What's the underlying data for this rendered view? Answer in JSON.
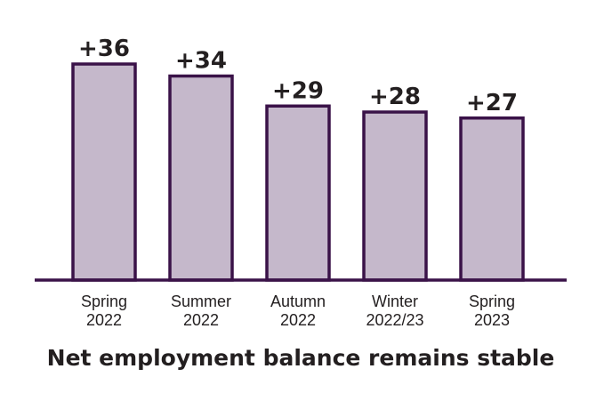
{
  "chart_data": {
    "type": "bar",
    "title": "Net employment balance remains stable",
    "categories": [
      [
        "Spring",
        "2022"
      ],
      [
        "Summer",
        "2022"
      ],
      [
        "Autumn",
        "2022"
      ],
      [
        "Winter",
        "2022/23"
      ],
      [
        "Spring",
        "2023"
      ]
    ],
    "values": [
      36,
      34,
      29,
      28,
      27
    ],
    "value_labels": [
      "+36",
      "+34",
      "+29",
      "+28",
      "+27"
    ],
    "ylim": [
      0,
      40
    ],
    "grid": false,
    "legend": "none",
    "colors": {
      "bar_fill": "#c5b8cb",
      "bar_stroke": "#3a1248",
      "axis": "#3a1248",
      "text": "#231f20"
    }
  }
}
